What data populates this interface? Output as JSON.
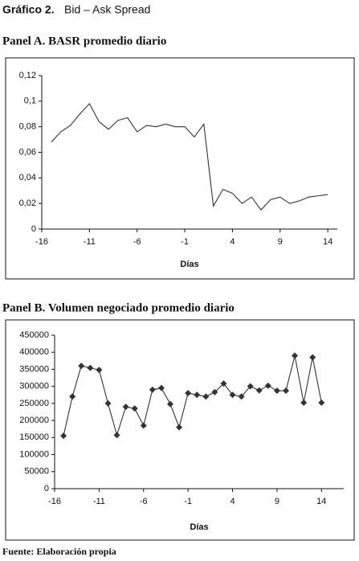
{
  "figure_label": "Gráfico 2.",
  "figure_title": "Bid – Ask Spread",
  "chart_data": [
    {
      "type": "line",
      "title": "Panel A. BASR promedio diario",
      "x_label": "Días",
      "color": "#333333",
      "markers": false,
      "x": [
        -15,
        -14,
        -13,
        -12,
        -11,
        -10,
        -9,
        -8,
        -7,
        -6,
        -5,
        -4,
        -3,
        -2,
        -1,
        0,
        1,
        2,
        3,
        4,
        5,
        6,
        7,
        8,
        9,
        10,
        11,
        12,
        13,
        14
      ],
      "values": [
        0.068,
        0.076,
        0.081,
        0.09,
        0.098,
        0.084,
        0.078,
        0.085,
        0.087,
        0.076,
        0.081,
        0.08,
        0.082,
        0.08,
        0.08,
        0.072,
        0.082,
        0.018,
        0.031,
        0.028,
        0.02,
        0.025,
        0.015,
        0.023,
        0.025,
        0.02,
        0.022,
        0.025,
        0.026,
        0.027
      ],
      "xlim": [
        -16,
        15
      ],
      "xticks": [
        -16,
        -11,
        -6,
        -1,
        4,
        9,
        14
      ],
      "ylim": [
        0,
        0.12
      ],
      "yticks": [
        0,
        {
          "value": 0.02,
          "label": "0,02"
        },
        {
          "value": 0.04,
          "label": "0,04"
        },
        {
          "value": 0.06,
          "label": "0,06"
        },
        {
          "value": 0.08,
          "label": "0,08"
        },
        {
          "value": 0.1,
          "label": "0,1"
        },
        {
          "value": 0.12,
          "label": "0,12"
        }
      ]
    },
    {
      "type": "line",
      "title": "Panel B. Volumen negociado promedio diario",
      "x_label": "Días",
      "color": "#333333",
      "markers": true,
      "x": [
        -15,
        -14,
        -13,
        -12,
        -11,
        -10,
        -9,
        -8,
        -7,
        -6,
        -5,
        -4,
        -3,
        -2,
        -1,
        0,
        1,
        2,
        3,
        4,
        5,
        6,
        7,
        8,
        9,
        10,
        11,
        12,
        13,
        14
      ],
      "values": [
        155000,
        270000,
        360000,
        354000,
        348000,
        250000,
        157000,
        240000,
        235000,
        185000,
        290000,
        295000,
        248000,
        180000,
        280000,
        275000,
        270000,
        283000,
        308000,
        275000,
        270000,
        300000,
        288000,
        302000,
        287000,
        287000,
        390000,
        252000,
        385000,
        252000
      ],
      "xlim": [
        -16,
        16.5
      ],
      "xticks": [
        -16,
        -11,
        -6,
        -1,
        4,
        9,
        14
      ],
      "ylim": [
        0,
        450000
      ],
      "yticks": [
        0,
        50000,
        100000,
        150000,
        200000,
        250000,
        300000,
        350000,
        400000,
        450000
      ]
    }
  ],
  "source": "Fuente: Elaboración propia"
}
